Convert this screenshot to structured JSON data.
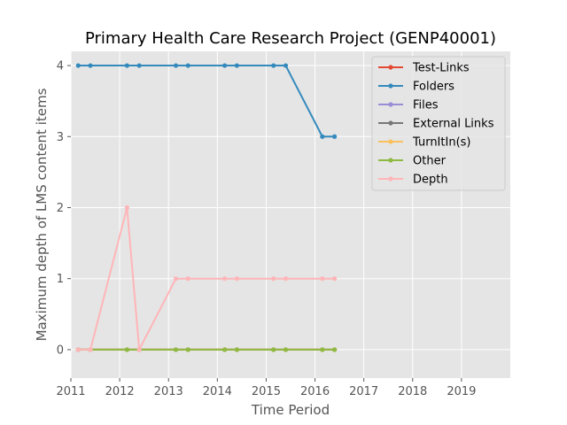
{
  "chart_data": {
    "type": "line",
    "title": "Primary Health Care Research Project (GENP40001)",
    "xlabel": "Time Period",
    "ylabel": "Maximum depth of LMS content items",
    "xlim": [
      2011,
      2020
    ],
    "ylim": [
      -0.4,
      4.2
    ],
    "xticks": [
      2011,
      2012,
      2013,
      2014,
      2015,
      2016,
      2017,
      2018,
      2019
    ],
    "yticks": [
      0,
      1,
      2,
      3,
      4
    ],
    "grid": true,
    "legend_position": "top-right",
    "x": [
      2011.15,
      2011.4,
      2012.15,
      2012.4,
      2013.15,
      2013.4,
      2014.15,
      2014.4,
      2015.15,
      2015.4,
      2016.15,
      2016.4
    ],
    "series": [
      {
        "name": "Test-Links",
        "color": "#e24a33",
        "values": [
          0,
          0,
          0,
          0,
          0,
          0,
          0,
          0,
          0,
          0,
          0,
          0
        ]
      },
      {
        "name": "Folders",
        "color": "#348abd",
        "values": [
          4,
          4,
          4,
          4,
          4,
          4,
          4,
          4,
          4,
          4,
          3,
          3
        ]
      },
      {
        "name": "Files",
        "color": "#988ed5",
        "values": [
          0,
          0,
          0,
          0,
          0,
          0,
          0,
          0,
          0,
          0,
          0,
          0
        ]
      },
      {
        "name": "External Links",
        "color": "#777777",
        "values": [
          0,
          0,
          0,
          0,
          0,
          0,
          0,
          0,
          0,
          0,
          0,
          0
        ]
      },
      {
        "name": "TurnItIn(s)",
        "color": "#fbc15e",
        "values": [
          0,
          0,
          0,
          0,
          0,
          0,
          0,
          0,
          0,
          0,
          0,
          0
        ]
      },
      {
        "name": "Other",
        "color": "#8eba42",
        "values": [
          0,
          0,
          0,
          0,
          0,
          0,
          0,
          0,
          0,
          0,
          0,
          0
        ]
      },
      {
        "name": "Depth",
        "color": "#ffb5b8",
        "values": [
          0,
          0,
          2,
          0,
          1,
          1,
          1,
          1,
          1,
          1,
          1,
          1
        ]
      }
    ]
  }
}
